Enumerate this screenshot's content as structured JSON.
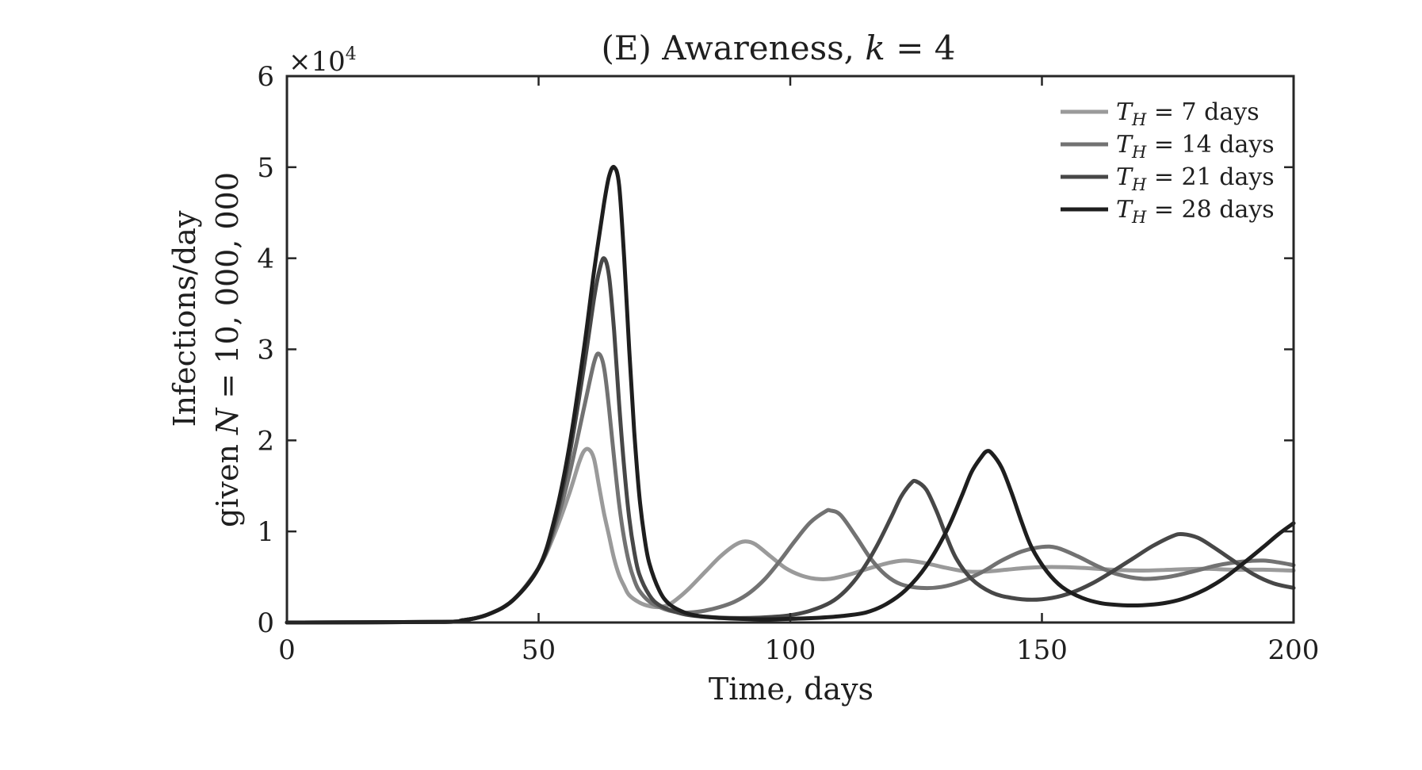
{
  "chart_data": {
    "type": "line",
    "title": "(E) Awareness, k = 4",
    "title_parts": {
      "text": "(E) Awareness, ",
      "var": "k",
      "rest": " = 4"
    },
    "xlabel": "Time, days",
    "ylabel_line1": "Infections/day",
    "ylabel_line2": {
      "text": "given ",
      "var": "N",
      "rest": " = 10, 000, 000"
    },
    "y_exponent": {
      "base": "×10",
      "power": "4"
    },
    "xlim": [
      0,
      200
    ],
    "ylim": [
      0,
      60000
    ],
    "x_ticks": [
      0,
      50,
      100,
      150,
      200
    ],
    "y_ticks": [
      0,
      10000,
      20000,
      30000,
      40000,
      50000,
      60000
    ],
    "y_tick_labels": [
      "0",
      "1",
      "2",
      "3",
      "4",
      "5",
      "6"
    ],
    "grid": false,
    "legend_position": "top-right",
    "series": [
      {
        "name": "T_H = 7 days",
        "legend": {
          "var": "T",
          "sub": "H",
          "rest": " = 7 days"
        },
        "color": "#9a9a9a",
        "points": [
          [
            0,
            0
          ],
          [
            30,
            60
          ],
          [
            35,
            250
          ],
          [
            40,
            900
          ],
          [
            45,
            2500
          ],
          [
            50,
            6000
          ],
          [
            53,
            9500
          ],
          [
            56,
            14000
          ],
          [
            58,
            17500
          ],
          [
            59,
            18800
          ],
          [
            60,
            19000
          ],
          [
            61,
            18000
          ],
          [
            62,
            15000
          ],
          [
            63,
            12000
          ],
          [
            64,
            9500
          ],
          [
            65,
            7000
          ],
          [
            66,
            5200
          ],
          [
            67,
            4000
          ],
          [
            68,
            3000
          ],
          [
            70,
            2200
          ],
          [
            72,
            1800
          ],
          [
            74,
            1700
          ],
          [
            76,
            2000
          ],
          [
            78,
            2800
          ],
          [
            80,
            3800
          ],
          [
            83,
            5500
          ],
          [
            86,
            7200
          ],
          [
            89,
            8500
          ],
          [
            91,
            8900
          ],
          [
            93,
            8600
          ],
          [
            96,
            7300
          ],
          [
            99,
            6000
          ],
          [
            102,
            5200
          ],
          [
            105,
            4800
          ],
          [
            108,
            4800
          ],
          [
            112,
            5300
          ],
          [
            116,
            6000
          ],
          [
            120,
            6600
          ],
          [
            123,
            6800
          ],
          [
            127,
            6500
          ],
          [
            131,
            6000
          ],
          [
            135,
            5600
          ],
          [
            139,
            5600
          ],
          [
            143,
            5800
          ],
          [
            147,
            6000
          ],
          [
            152,
            6100
          ],
          [
            158,
            6000
          ],
          [
            164,
            5800
          ],
          [
            170,
            5700
          ],
          [
            176,
            5800
          ],
          [
            182,
            5900
          ],
          [
            188,
            5800
          ],
          [
            194,
            5800
          ],
          [
            200,
            5700
          ]
        ]
      },
      {
        "name": "T_H = 14 days",
        "legend": {
          "var": "T",
          "sub": "H",
          "rest": " = 14 days"
        },
        "color": "#727272",
        "points": [
          [
            0,
            0
          ],
          [
            30,
            60
          ],
          [
            35,
            250
          ],
          [
            40,
            900
          ],
          [
            45,
            2500
          ],
          [
            50,
            6000
          ],
          [
            53,
            10000
          ],
          [
            56,
            16000
          ],
          [
            59,
            23500
          ],
          [
            61,
            28500
          ],
          [
            62,
            29500
          ],
          [
            63,
            28000
          ],
          [
            64,
            23500
          ],
          [
            65,
            18000
          ],
          [
            66,
            13000
          ],
          [
            67,
            9200
          ],
          [
            68,
            6500
          ],
          [
            69,
            4700
          ],
          [
            70,
            3500
          ],
          [
            72,
            2300
          ],
          [
            74,
            1700
          ],
          [
            76,
            1300
          ],
          [
            78,
            1100
          ],
          [
            80,
            1100
          ],
          [
            83,
            1300
          ],
          [
            86,
            1700
          ],
          [
            89,
            2300
          ],
          [
            92,
            3300
          ],
          [
            95,
            4800
          ],
          [
            98,
            6800
          ],
          [
            101,
            9000
          ],
          [
            104,
            11000
          ],
          [
            107,
            12200
          ],
          [
            108,
            12300
          ],
          [
            110,
            11800
          ],
          [
            113,
            9500
          ],
          [
            116,
            7000
          ],
          [
            119,
            5200
          ],
          [
            122,
            4200
          ],
          [
            126,
            3800
          ],
          [
            130,
            3900
          ],
          [
            134,
            4500
          ],
          [
            138,
            5500
          ],
          [
            142,
            6800
          ],
          [
            146,
            7800
          ],
          [
            150,
            8300
          ],
          [
            153,
            8200
          ],
          [
            157,
            7300
          ],
          [
            161,
            6200
          ],
          [
            165,
            5300
          ],
          [
            170,
            4800
          ],
          [
            175,
            5000
          ],
          [
            180,
            5600
          ],
          [
            185,
            6300
          ],
          [
            190,
            6700
          ],
          [
            194,
            6800
          ],
          [
            197,
            6600
          ],
          [
            200,
            6300
          ]
        ]
      },
      {
        "name": "T_H = 21 days",
        "legend": {
          "var": "T",
          "sub": "H",
          "rest": " = 21 days"
        },
        "color": "#474747",
        "points": [
          [
            0,
            0
          ],
          [
            30,
            60
          ],
          [
            35,
            250
          ],
          [
            40,
            900
          ],
          [
            45,
            2500
          ],
          [
            50,
            6000
          ],
          [
            53,
            10500
          ],
          [
            56,
            18000
          ],
          [
            59,
            28000
          ],
          [
            61,
            35500
          ],
          [
            62,
            38500
          ],
          [
            63,
            40000
          ],
          [
            64,
            38000
          ],
          [
            65,
            32000
          ],
          [
            66,
            24000
          ],
          [
            67,
            17000
          ],
          [
            68,
            11500
          ],
          [
            69,
            7800
          ],
          [
            70,
            5300
          ],
          [
            72,
            3000
          ],
          [
            74,
            1900
          ],
          [
            77,
            1200
          ],
          [
            80,
            800
          ],
          [
            84,
            600
          ],
          [
            88,
            500
          ],
          [
            92,
            500
          ],
          [
            96,
            600
          ],
          [
            100,
            800
          ],
          [
            104,
            1300
          ],
          [
            108,
            2200
          ],
          [
            111,
            3500
          ],
          [
            114,
            5500
          ],
          [
            117,
            8200
          ],
          [
            120,
            11500
          ],
          [
            122,
            13800
          ],
          [
            124,
            15300
          ],
          [
            125,
            15500
          ],
          [
            127,
            14600
          ],
          [
            129,
            12300
          ],
          [
            131,
            9500
          ],
          [
            133,
            7000
          ],
          [
            136,
            4800
          ],
          [
            140,
            3300
          ],
          [
            144,
            2700
          ],
          [
            148,
            2500
          ],
          [
            152,
            2700
          ],
          [
            156,
            3300
          ],
          [
            160,
            4300
          ],
          [
            164,
            5600
          ],
          [
            168,
            7000
          ],
          [
            172,
            8400
          ],
          [
            176,
            9500
          ],
          [
            178,
            9700
          ],
          [
            181,
            9300
          ],
          [
            184,
            8300
          ],
          [
            188,
            6800
          ],
          [
            192,
            5300
          ],
          [
            196,
            4300
          ],
          [
            200,
            3800
          ]
        ]
      },
      {
        "name": "T_H = 28 days",
        "legend": {
          "var": "T",
          "sub": "H",
          "rest": " = 28 days"
        },
        "color": "#1e1e1e",
        "points": [
          [
            0,
            0
          ],
          [
            30,
            60
          ],
          [
            35,
            250
          ],
          [
            40,
            900
          ],
          [
            45,
            2500
          ],
          [
            50,
            6000
          ],
          [
            53,
            11000
          ],
          [
            56,
            19000
          ],
          [
            59,
            30000
          ],
          [
            61,
            38500
          ],
          [
            63,
            46000
          ],
          [
            64,
            49000
          ],
          [
            65,
            50000
          ],
          [
            66,
            48000
          ],
          [
            67,
            40000
          ],
          [
            68,
            30000
          ],
          [
            69,
            21000
          ],
          [
            70,
            14000
          ],
          [
            71,
            9500
          ],
          [
            72,
            6500
          ],
          [
            74,
            3500
          ],
          [
            76,
            2000
          ],
          [
            79,
            1100
          ],
          [
            82,
            700
          ],
          [
            86,
            500
          ],
          [
            90,
            400
          ],
          [
            95,
            350
          ],
          [
            100,
            400
          ],
          [
            105,
            500
          ],
          [
            110,
            700
          ],
          [
            115,
            1100
          ],
          [
            119,
            2000
          ],
          [
            123,
            3600
          ],
          [
            127,
            6200
          ],
          [
            131,
            10000
          ],
          [
            134,
            13800
          ],
          [
            136,
            16500
          ],
          [
            138,
            18200
          ],
          [
            139,
            18800
          ],
          [
            140,
            18600
          ],
          [
            142,
            17000
          ],
          [
            144,
            14200
          ],
          [
            146,
            11000
          ],
          [
            148,
            8200
          ],
          [
            151,
            5600
          ],
          [
            154,
            3900
          ],
          [
            158,
            2700
          ],
          [
            162,
            2100
          ],
          [
            166,
            1900
          ],
          [
            170,
            1900
          ],
          [
            174,
            2100
          ],
          [
            178,
            2600
          ],
          [
            182,
            3500
          ],
          [
            186,
            4800
          ],
          [
            190,
            6500
          ],
          [
            194,
            8300
          ],
          [
            197,
            9700
          ],
          [
            200,
            10900
          ]
        ]
      }
    ]
  }
}
